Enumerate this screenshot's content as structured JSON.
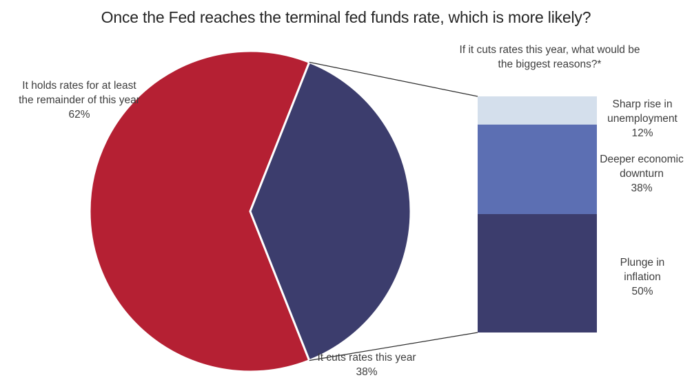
{
  "title": "Once the Fed reaches the terminal fed funds rate, which is more likely?",
  "colors": {
    "red": "#b52033",
    "navy": "#3c3d6d",
    "medium_blue": "#5c6fb3",
    "light_blue": "#d4dfec",
    "connector": "#2b2b2b",
    "slice_border": "#ffffff",
    "label_text": "#3d3d3d",
    "title_text": "#242424"
  },
  "chart_data": [
    {
      "type": "pie",
      "title": "Once the Fed reaches the terminal fed funds rate, which is more likely?",
      "slices": [
        {
          "label": "It holds rates for at least the remainder of this year",
          "value": 62,
          "color": "#b52033"
        },
        {
          "label": "It cuts rates this year",
          "value": 38,
          "color": "#3c3d6d"
        }
      ],
      "layout": {
        "legend": false,
        "cut_slice_centered_at_3_oclock": true,
        "white_slice_borders": true,
        "labels_outside": true
      }
    },
    {
      "type": "bar",
      "subtype": "single-stacked-column",
      "title": "If it cuts rates this year, what would be the biggest reasons?*",
      "categories": [
        "Sharp rise in unemployment",
        "Deeper economic downturn",
        "Plunge in inflation"
      ],
      "values": [
        12,
        38,
        50
      ],
      "colors": [
        "#d4dfec",
        "#5c6fb3",
        "#3c3d6d"
      ],
      "ylim": [
        0,
        100
      ],
      "layout": {
        "grid": false,
        "axes_hidden": true,
        "labels_right_of_bar": true,
        "connector_lines_from_pie_slice": true
      }
    }
  ],
  "labels": {
    "pie_hold": {
      "line1": "It holds rates for at least",
      "line2": "the remainder of this year",
      "pct": "62%"
    },
    "pie_cut": {
      "line1": "It cuts rates this year",
      "pct": "38%"
    },
    "bar_subtitle_line1": "If it cuts rates this year, what would be",
    "bar_subtitle_line2": "the biggest reasons?*",
    "bar_labels": [
      {
        "line1": "Sharp rise in",
        "line2": "unemployment",
        "pct": "12%"
      },
      {
        "line1": "Deeper economic",
        "line2": "downturn",
        "pct": "38%"
      },
      {
        "line1": "Plunge in",
        "line2": "inflation",
        "pct": "50%"
      }
    ]
  }
}
